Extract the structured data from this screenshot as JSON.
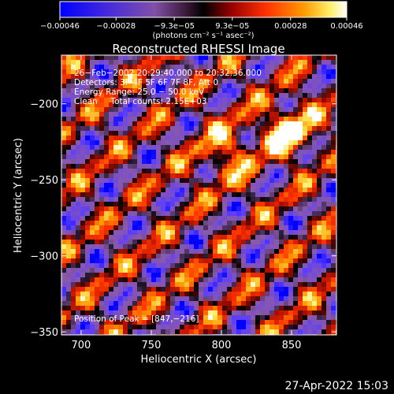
{
  "chart_data": {
    "type": "heatmap",
    "title": "Reconstructed RHESSI Image",
    "xlabel": "Heliocentric X (arcsec)",
    "ylabel": "Heliocentric Y (arcsec)",
    "xlim": [
      686,
      882
    ],
    "ylim": [
      -352,
      -168
    ],
    "x_ticks": [
      700,
      750,
      800,
      850
    ],
    "y_ticks": [
      -350,
      -300,
      -250,
      -200
    ],
    "x_tick_labels": [
      "700",
      "750",
      "800",
      "850"
    ],
    "y_tick_labels": [
      "−350",
      "−300",
      "−250",
      "−200"
    ],
    "colorbar": {
      "range": [
        -0.00046,
        0.00046
      ],
      "ticks": [
        -0.00046,
        -0.00028,
        -9.3e-05,
        9.3e-05,
        0.00028,
        0.00046
      ],
      "tick_labels": [
        "−0.00046",
        "−0.00028",
        "−9.3e−05",
        "9.3e−05",
        "0.00028",
        "0.00046"
      ],
      "units_label": "(photons cm⁻² s⁻¹ asec⁻²)"
    },
    "annotations": [
      "26−Feb−2002 20:29:40.000 to 20:32:36.000",
      "Detectors: 3F 4F 5F 6F 7F 8F, Att 0",
      "Energy Range: 25.0 − 50.0 keV",
      "Clean     Total counts: 2.15E+03",
      "Position of Peak = [847,−216]"
    ],
    "peak": [
      847,
      -216
    ],
    "colormap": [
      "#0000ff",
      "#5a3cff",
      "#7a4fc8",
      "#8a5aa8",
      "#000000",
      "#b01000",
      "#ff3300",
      "#ff9900",
      "#ffee66",
      "#ffffff"
    ]
  },
  "footer": {
    "timestamp": "27-Apr-2022 15:03"
  }
}
